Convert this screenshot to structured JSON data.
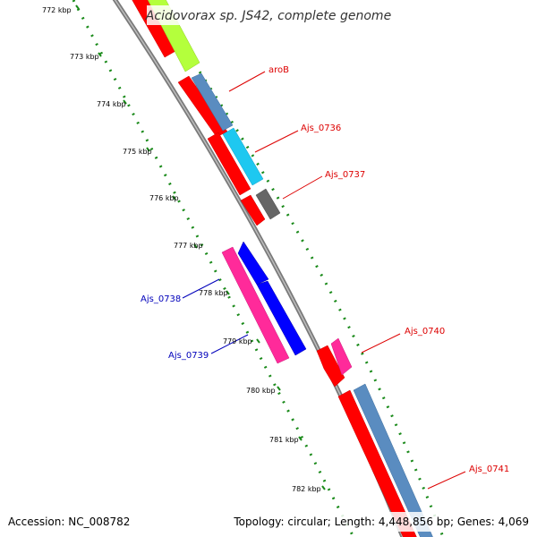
{
  "title": "Acidovorax sp. JS42, complete genome",
  "footer": {
    "accession": "Accession: NC_008782",
    "summary": "Topology: circular; Length: 4,448,856 bp; Genes: 4,069"
  },
  "ruler": {
    "ticks": [
      "772 kbp",
      "773 kbp",
      "774 kbp",
      "775 kbp",
      "776 kbp",
      "777 kbp",
      "778 kbp",
      "779 kbp",
      "780 kbp",
      "781 kbp",
      "782 kbp"
    ]
  },
  "labels": {
    "aroB": "aroB",
    "ajs0736": "Ajs_0736",
    "ajs0737": "Ajs_0737",
    "ajs0738": "Ajs_0738",
    "ajs0739": "Ajs_0739",
    "ajs0740": "Ajs_0740",
    "ajs0741": "Ajs_0741"
  },
  "colors": {
    "forward_label": "#dd0000",
    "reverse_label": "#0000bb",
    "backbone": "#888888",
    "tick_green": "#1a8a1a",
    "red": "#ff0000",
    "steelblue": "#5a8cc0",
    "cyan": "#1ec8f0",
    "lime": "#b4ff3c",
    "gray": "#666666",
    "magenta": "#ff2a9a",
    "blue": "#0000ff"
  }
}
